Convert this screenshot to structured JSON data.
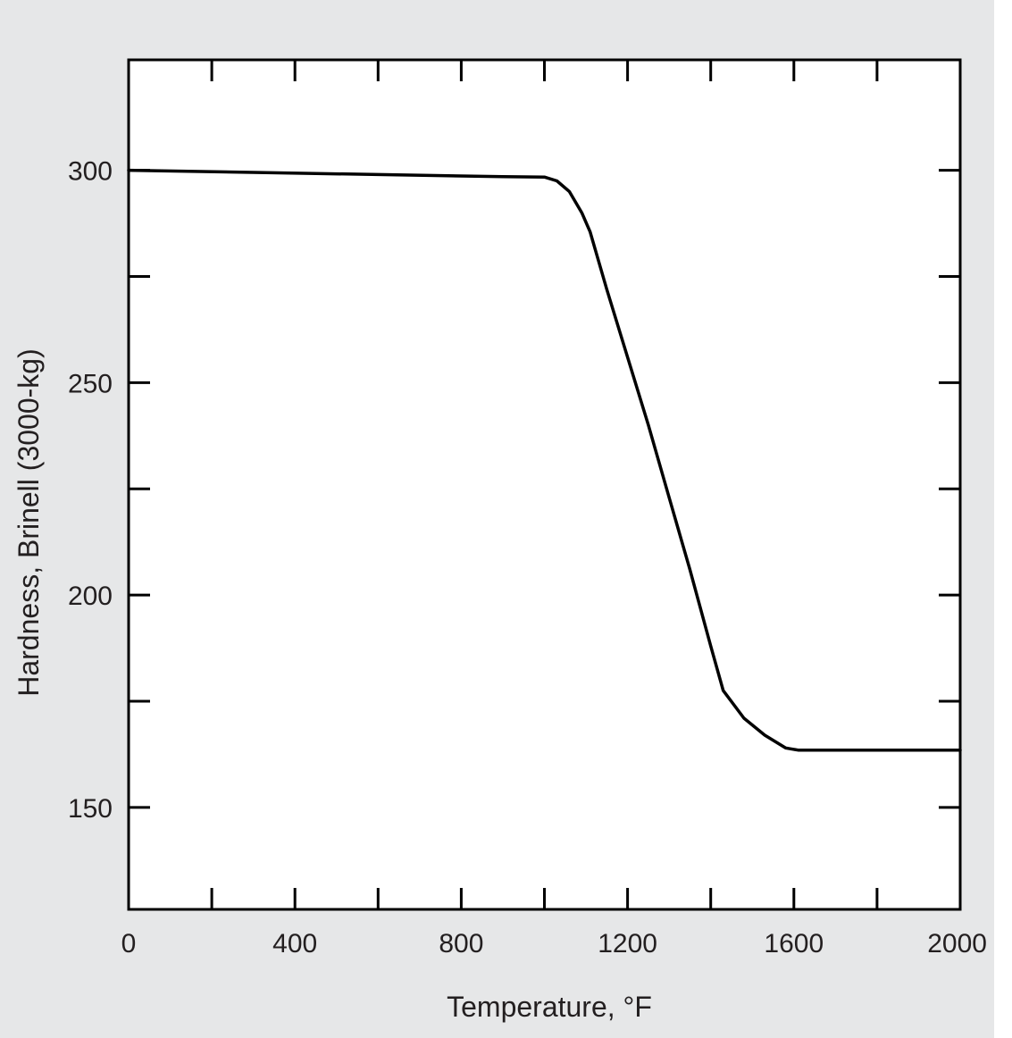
{
  "chart_data": {
    "type": "line",
    "title": "",
    "xlabel": "Temperature, °F",
    "ylabel": "Hardness, Brinell (3000-kg)",
    "xlim": [
      0,
      2000
    ],
    "ylim": [
      126,
      326
    ],
    "x_tick_labels": [
      {
        "value": 0,
        "label": "0"
      },
      {
        "value": 400,
        "label": "400"
      },
      {
        "value": 800,
        "label": "800"
      },
      {
        "value": 1200,
        "label": "1200"
      },
      {
        "value": 1600,
        "label": "1600"
      },
      {
        "value": 2000,
        "label": "2000"
      }
    ],
    "y_tick_labels": [
      {
        "value": 150,
        "label": "150"
      },
      {
        "value": 200,
        "label": "200"
      },
      {
        "value": 250,
        "label": "250"
      },
      {
        "value": 300,
        "label": "300"
      }
    ],
    "x_minor_ticks": [
      200,
      400,
      600,
      800,
      1000,
      1200,
      1400,
      1600,
      1800
    ],
    "y_minor_ticks": [
      150,
      175,
      200,
      225,
      250,
      275,
      300
    ],
    "grid": false,
    "series": [
      {
        "x": [
          0,
          300,
          600,
          900,
          1000,
          1030,
          1060,
          1090,
          1110,
          1150,
          1200,
          1250,
          1300,
          1350,
          1400,
          1430,
          1480,
          1530,
          1580,
          1610,
          1700,
          1800,
          1900,
          2000
        ],
        "y": [
          300,
          299.5,
          299,
          298.5,
          298.4,
          297.5,
          295,
          290,
          285.5,
          272,
          256,
          240,
          223,
          206,
          188,
          177.5,
          171,
          167,
          164,
          163.5,
          163.5,
          163.5,
          163.5,
          163.5
        ]
      }
    ],
    "colors": {
      "background": "#e6e7e8",
      "plot_area": "#ffffff",
      "line": "#000000",
      "text": "#231f20"
    }
  }
}
